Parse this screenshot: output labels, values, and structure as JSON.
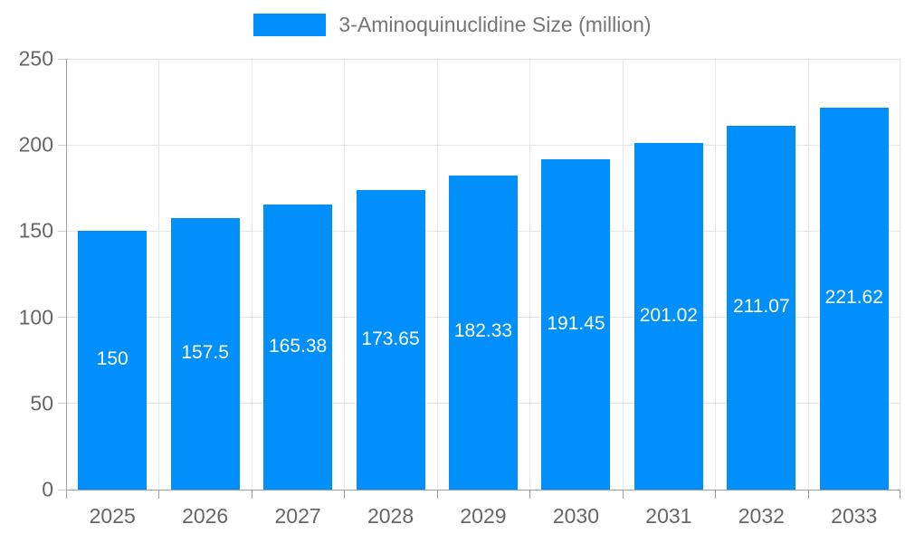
{
  "legend": {
    "label": "3-Aminoquinuclidine Size (million)"
  },
  "colors": {
    "bar": "#008FFB",
    "grid": "#e6e6e6",
    "axis": "#9e9e9e",
    "tick_text": "#666666",
    "legend_text": "#757575",
    "value_text": "#ffffff"
  },
  "chart_data": {
    "type": "bar",
    "title": "",
    "xlabel": "",
    "ylabel": "",
    "categories": [
      "2025",
      "2026",
      "2027",
      "2028",
      "2029",
      "2030",
      "2031",
      "2032",
      "2033"
    ],
    "series": [
      {
        "name": "3-Aminoquinuclidine Size (million)",
        "values": [
          150,
          157.5,
          165.38,
          173.65,
          182.33,
          191.45,
          201.02,
          211.07,
          221.62
        ]
      }
    ],
    "value_labels": [
      "150",
      "157.5",
      "165.38",
      "173.65",
      "182.33",
      "191.45",
      "201.02",
      "211.07",
      "221.62"
    ],
    "ylim": [
      0,
      250
    ],
    "yticks": [
      0,
      50,
      100,
      150,
      200,
      250
    ],
    "grid": true,
    "legend_position": "top",
    "value_label_position": "inside-middle"
  }
}
